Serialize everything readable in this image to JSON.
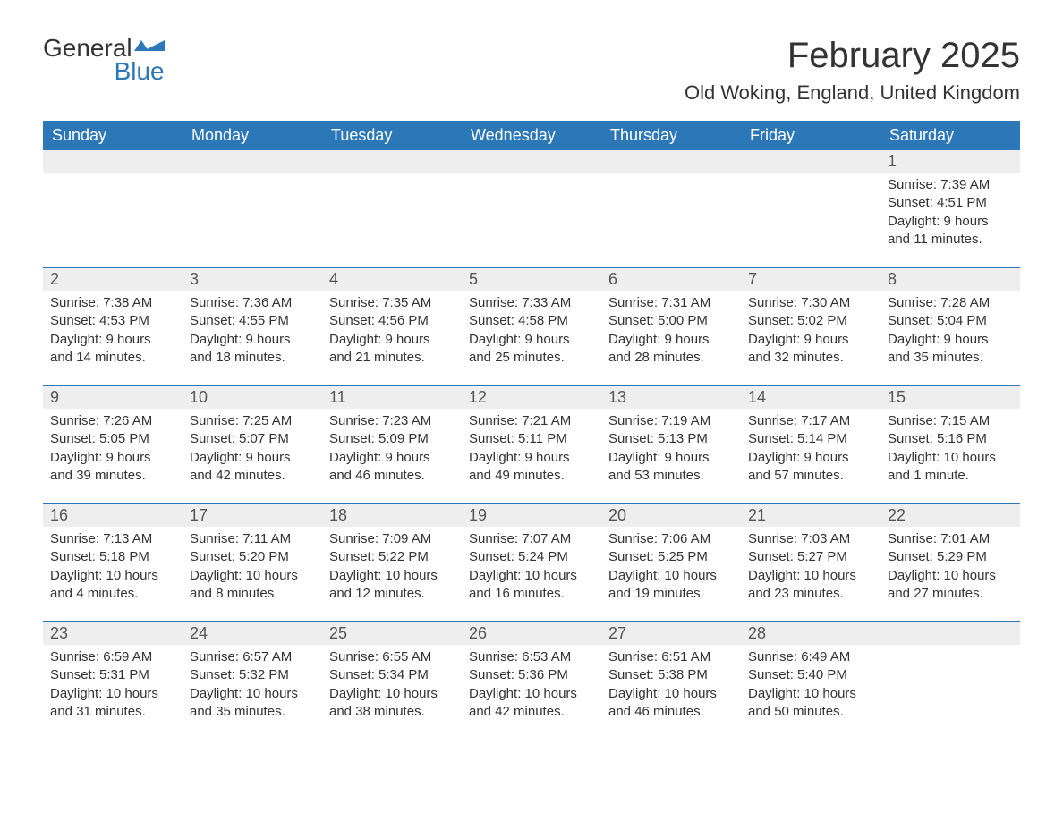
{
  "logo": {
    "word1": "General",
    "word2": "Blue"
  },
  "header": {
    "month_title": "February 2025",
    "location": "Old Woking, England, United Kingdom"
  },
  "colors": {
    "brand_blue": "#2c77b8",
    "header_bg": "#2c77b8",
    "header_text": "#ffffff",
    "daynum_bg": "#eeeeee",
    "text": "#333333",
    "page_bg": "#ffffff"
  },
  "typography": {
    "title_fontsize": 40,
    "location_fontsize": 22,
    "weekday_fontsize": 18,
    "daynum_fontsize": 18,
    "body_fontsize": 15
  },
  "weekdays": [
    "Sunday",
    "Monday",
    "Tuesday",
    "Wednesday",
    "Thursday",
    "Friday",
    "Saturday"
  ],
  "labels": {
    "sunrise": "Sunrise:",
    "sunset": "Sunset:",
    "daylight": "Daylight:"
  },
  "weeks": [
    [
      null,
      null,
      null,
      null,
      null,
      null,
      {
        "n": "1",
        "sunrise": "7:39 AM",
        "sunset": "4:51 PM",
        "daylight": "9 hours and 11 minutes."
      }
    ],
    [
      {
        "n": "2",
        "sunrise": "7:38 AM",
        "sunset": "4:53 PM",
        "daylight": "9 hours and 14 minutes."
      },
      {
        "n": "3",
        "sunrise": "7:36 AM",
        "sunset": "4:55 PM",
        "daylight": "9 hours and 18 minutes."
      },
      {
        "n": "4",
        "sunrise": "7:35 AM",
        "sunset": "4:56 PM",
        "daylight": "9 hours and 21 minutes."
      },
      {
        "n": "5",
        "sunrise": "7:33 AM",
        "sunset": "4:58 PM",
        "daylight": "9 hours and 25 minutes."
      },
      {
        "n": "6",
        "sunrise": "7:31 AM",
        "sunset": "5:00 PM",
        "daylight": "9 hours and 28 minutes."
      },
      {
        "n": "7",
        "sunrise": "7:30 AM",
        "sunset": "5:02 PM",
        "daylight": "9 hours and 32 minutes."
      },
      {
        "n": "8",
        "sunrise": "7:28 AM",
        "sunset": "5:04 PM",
        "daylight": "9 hours and 35 minutes."
      }
    ],
    [
      {
        "n": "9",
        "sunrise": "7:26 AM",
        "sunset": "5:05 PM",
        "daylight": "9 hours and 39 minutes."
      },
      {
        "n": "10",
        "sunrise": "7:25 AM",
        "sunset": "5:07 PM",
        "daylight": "9 hours and 42 minutes."
      },
      {
        "n": "11",
        "sunrise": "7:23 AM",
        "sunset": "5:09 PM",
        "daylight": "9 hours and 46 minutes."
      },
      {
        "n": "12",
        "sunrise": "7:21 AM",
        "sunset": "5:11 PM",
        "daylight": "9 hours and 49 minutes."
      },
      {
        "n": "13",
        "sunrise": "7:19 AM",
        "sunset": "5:13 PM",
        "daylight": "9 hours and 53 minutes."
      },
      {
        "n": "14",
        "sunrise": "7:17 AM",
        "sunset": "5:14 PM",
        "daylight": "9 hours and 57 minutes."
      },
      {
        "n": "15",
        "sunrise": "7:15 AM",
        "sunset": "5:16 PM",
        "daylight": "10 hours and 1 minute."
      }
    ],
    [
      {
        "n": "16",
        "sunrise": "7:13 AM",
        "sunset": "5:18 PM",
        "daylight": "10 hours and 4 minutes."
      },
      {
        "n": "17",
        "sunrise": "7:11 AM",
        "sunset": "5:20 PM",
        "daylight": "10 hours and 8 minutes."
      },
      {
        "n": "18",
        "sunrise": "7:09 AM",
        "sunset": "5:22 PM",
        "daylight": "10 hours and 12 minutes."
      },
      {
        "n": "19",
        "sunrise": "7:07 AM",
        "sunset": "5:24 PM",
        "daylight": "10 hours and 16 minutes."
      },
      {
        "n": "20",
        "sunrise": "7:06 AM",
        "sunset": "5:25 PM",
        "daylight": "10 hours and 19 minutes."
      },
      {
        "n": "21",
        "sunrise": "7:03 AM",
        "sunset": "5:27 PM",
        "daylight": "10 hours and 23 minutes."
      },
      {
        "n": "22",
        "sunrise": "7:01 AM",
        "sunset": "5:29 PM",
        "daylight": "10 hours and 27 minutes."
      }
    ],
    [
      {
        "n": "23",
        "sunrise": "6:59 AM",
        "sunset": "5:31 PM",
        "daylight": "10 hours and 31 minutes."
      },
      {
        "n": "24",
        "sunrise": "6:57 AM",
        "sunset": "5:32 PM",
        "daylight": "10 hours and 35 minutes."
      },
      {
        "n": "25",
        "sunrise": "6:55 AM",
        "sunset": "5:34 PM",
        "daylight": "10 hours and 38 minutes."
      },
      {
        "n": "26",
        "sunrise": "6:53 AM",
        "sunset": "5:36 PM",
        "daylight": "10 hours and 42 minutes."
      },
      {
        "n": "27",
        "sunrise": "6:51 AM",
        "sunset": "5:38 PM",
        "daylight": "10 hours and 46 minutes."
      },
      {
        "n": "28",
        "sunrise": "6:49 AM",
        "sunset": "5:40 PM",
        "daylight": "10 hours and 50 minutes."
      },
      null
    ]
  ]
}
